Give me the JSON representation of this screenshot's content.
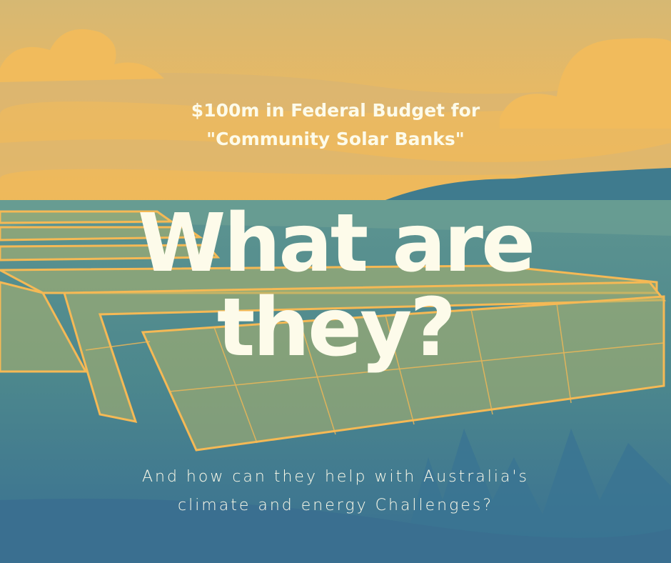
{
  "headline": {
    "line1": "$100m in Federal Budget for",
    "line2": "\"Community Solar Banks\""
  },
  "title": {
    "line1": "What are",
    "line2": "they?"
  },
  "subtitle": {
    "line1": "And how can they help with Australia's",
    "line2": "climate and energy Challenges?"
  },
  "colors": {
    "sky": "#f1bb5c",
    "sky_band": "#d5b673",
    "water": "#4d8a8e",
    "ground": "#3b7292",
    "panel_fill": "#a9b06e",
    "panel_frame": "#f5b955",
    "text": "#fdfbea"
  }
}
